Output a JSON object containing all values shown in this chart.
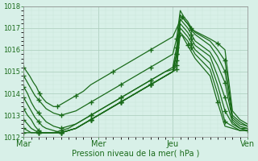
{
  "xlabel": "Pression niveau de la mer( hPa )",
  "bg_color": "#d8f0e8",
  "line_color": "#1a6b1a",
  "grid_major_color": "#aaccbb",
  "grid_minor_color": "#c8e4d8",
  "ylim": [
    1012.0,
    1018.0
  ],
  "yticks": [
    1012,
    1013,
    1014,
    1015,
    1016,
    1017,
    1018
  ],
  "xtick_labels": [
    "Mar",
    "Mer",
    "Jeu",
    "Ven"
  ],
  "xtick_positions": [
    0,
    1,
    2,
    3
  ],
  "xlim": [
    0,
    3.0
  ],
  "series": [
    {
      "x": [
        0.0,
        0.04,
        0.08,
        0.13,
        0.17,
        0.21,
        0.25,
        0.3,
        0.35,
        0.4,
        0.45,
        0.5,
        0.55,
        0.6,
        0.65,
        0.7,
        0.8,
        0.9,
        1.0,
        1.1,
        1.2,
        1.3,
        1.4,
        1.5,
        1.6,
        1.7,
        1.8,
        1.9,
        2.0,
        2.08,
        2.13,
        2.17,
        2.22,
        2.27,
        2.5,
        2.6,
        2.7,
        2.8,
        2.9,
        3.0
      ],
      "y": [
        1015.2,
        1015.0,
        1014.8,
        1014.5,
        1014.3,
        1014.0,
        1013.8,
        1013.6,
        1013.5,
        1013.4,
        1013.4,
        1013.5,
        1013.6,
        1013.7,
        1013.8,
        1013.9,
        1014.1,
        1014.4,
        1014.6,
        1014.8,
        1015.0,
        1015.2,
        1015.4,
        1015.6,
        1015.8,
        1016.0,
        1016.2,
        1016.4,
        1016.6,
        1017.2,
        1017.5,
        1017.3,
        1017.1,
        1016.9,
        1016.5,
        1016.3,
        1016.0,
        1013.2,
        1012.8,
        1012.6
      ]
    },
    {
      "x": [
        0.0,
        0.05,
        0.1,
        0.15,
        0.2,
        0.25,
        0.3,
        0.4,
        0.5,
        0.6,
        0.7,
        0.8,
        0.9,
        1.0,
        1.1,
        1.2,
        1.3,
        1.4,
        1.5,
        1.6,
        1.7,
        1.8,
        1.9,
        2.0,
        2.05,
        2.1,
        2.15,
        2.2,
        2.25,
        2.3,
        2.5,
        2.6,
        2.7,
        2.8,
        2.9,
        3.0
      ],
      "y": [
        1014.8,
        1014.5,
        1014.2,
        1013.9,
        1013.7,
        1013.5,
        1013.3,
        1013.1,
        1013.0,
        1013.1,
        1013.2,
        1013.4,
        1013.6,
        1013.8,
        1014.0,
        1014.2,
        1014.4,
        1014.6,
        1014.8,
        1015.0,
        1015.2,
        1015.4,
        1015.6,
        1015.8,
        1016.5,
        1017.8,
        1017.5,
        1017.3,
        1017.0,
        1016.8,
        1016.4,
        1016.0,
        1015.5,
        1013.0,
        1012.7,
        1012.5
      ]
    },
    {
      "x": [
        0.0,
        0.05,
        0.1,
        0.15,
        0.2,
        0.25,
        0.3,
        0.4,
        0.5,
        0.6,
        0.7,
        0.8,
        0.9,
        1.0,
        1.1,
        1.2,
        1.3,
        1.4,
        1.5,
        1.6,
        1.7,
        1.8,
        1.9,
        2.0,
        2.05,
        2.1,
        2.15,
        2.2,
        2.25,
        2.3,
        2.5,
        2.6,
        2.7,
        2.8,
        2.9,
        3.0
      ],
      "y": [
        1014.3,
        1014.0,
        1013.6,
        1013.3,
        1013.1,
        1012.9,
        1012.7,
        1012.5,
        1012.4,
        1012.5,
        1012.6,
        1012.8,
        1013.0,
        1013.2,
        1013.4,
        1013.6,
        1013.8,
        1014.0,
        1014.2,
        1014.4,
        1014.6,
        1014.8,
        1015.0,
        1015.2,
        1016.1,
        1017.6,
        1017.4,
        1017.2,
        1016.9,
        1016.7,
        1016.2,
        1015.7,
        1015.0,
        1012.9,
        1012.6,
        1012.5
      ]
    },
    {
      "x": [
        0.0,
        0.05,
        0.1,
        0.15,
        0.2,
        0.25,
        0.3,
        0.4,
        0.5,
        0.6,
        0.7,
        0.8,
        0.9,
        1.0,
        1.1,
        1.2,
        1.3,
        1.4,
        1.5,
        1.6,
        1.7,
        1.8,
        1.9,
        2.0,
        2.05,
        2.1,
        2.15,
        2.2,
        2.25,
        2.3,
        2.5,
        2.6,
        2.7,
        2.8,
        2.9,
        3.0
      ],
      "y": [
        1013.8,
        1013.5,
        1013.2,
        1012.9,
        1012.7,
        1012.5,
        1012.4,
        1012.3,
        1012.2,
        1012.3,
        1012.4,
        1012.6,
        1012.8,
        1013.0,
        1013.2,
        1013.4,
        1013.6,
        1013.8,
        1014.0,
        1014.2,
        1014.4,
        1014.6,
        1014.8,
        1015.0,
        1015.8,
        1017.4,
        1017.2,
        1017.0,
        1016.7,
        1016.4,
        1015.9,
        1015.3,
        1014.5,
        1012.8,
        1012.5,
        1012.4
      ]
    },
    {
      "x": [
        0.0,
        0.05,
        0.1,
        0.15,
        0.2,
        0.25,
        0.3,
        0.4,
        0.5,
        0.6,
        0.7,
        0.8,
        0.9,
        1.0,
        1.1,
        1.2,
        1.3,
        1.4,
        1.5,
        1.6,
        1.7,
        1.8,
        1.9,
        2.0,
        2.05,
        2.1,
        2.15,
        2.2,
        2.25,
        2.3,
        2.5,
        2.6,
        2.7,
        2.8,
        2.9,
        3.0
      ],
      "y": [
        1013.3,
        1013.0,
        1012.8,
        1012.5,
        1012.3,
        1012.2,
        1012.2,
        1012.2,
        1012.2,
        1012.3,
        1012.4,
        1012.6,
        1012.8,
        1013.0,
        1013.2,
        1013.4,
        1013.6,
        1013.8,
        1014.0,
        1014.2,
        1014.4,
        1014.6,
        1014.8,
        1015.0,
        1015.5,
        1017.2,
        1017.0,
        1016.8,
        1016.5,
        1016.2,
        1015.7,
        1014.8,
        1013.8,
        1012.7,
        1012.4,
        1012.4
      ]
    },
    {
      "x": [
        0.0,
        0.05,
        0.1,
        0.15,
        0.2,
        0.25,
        0.3,
        0.4,
        0.5,
        0.6,
        0.7,
        0.8,
        0.9,
        1.0,
        1.1,
        1.2,
        1.3,
        1.4,
        1.5,
        1.6,
        1.7,
        1.8,
        1.9,
        2.0,
        2.05,
        2.1,
        2.15,
        2.2,
        2.25,
        2.3,
        2.5,
        2.6,
        2.7,
        2.8,
        2.9,
        3.0
      ],
      "y": [
        1012.8,
        1012.6,
        1012.4,
        1012.3,
        1012.2,
        1012.2,
        1012.2,
        1012.2,
        1012.2,
        1012.3,
        1012.4,
        1012.6,
        1012.8,
        1013.0,
        1013.2,
        1013.4,
        1013.6,
        1013.8,
        1014.0,
        1014.2,
        1014.4,
        1014.6,
        1014.8,
        1015.0,
        1015.3,
        1017.0,
        1016.8,
        1016.6,
        1016.3,
        1016.0,
        1015.4,
        1014.4,
        1013.2,
        1012.6,
        1012.4,
        1012.3
      ]
    },
    {
      "x": [
        0.0,
        0.05,
        0.1,
        0.15,
        0.2,
        0.25,
        0.3,
        0.4,
        0.5,
        0.6,
        0.7,
        0.8,
        0.9,
        1.0,
        1.1,
        1.2,
        1.3,
        1.4,
        1.5,
        1.6,
        1.7,
        1.8,
        1.9,
        2.0,
        2.05,
        2.1,
        2.15,
        2.2,
        2.25,
        2.3,
        2.5,
        2.6,
        2.7,
        2.8,
        2.9,
        3.0
      ],
      "y": [
        1012.4,
        1012.3,
        1012.2,
        1012.2,
        1012.2,
        1012.2,
        1012.2,
        1012.2,
        1012.2,
        1012.3,
        1012.4,
        1012.6,
        1012.8,
        1013.0,
        1013.2,
        1013.4,
        1013.6,
        1013.8,
        1014.0,
        1014.2,
        1014.4,
        1014.6,
        1014.8,
        1015.0,
        1015.1,
        1016.8,
        1016.6,
        1016.4,
        1016.1,
        1015.8,
        1015.1,
        1014.0,
        1012.7,
        1012.5,
        1012.3,
        1012.3
      ]
    },
    {
      "x": [
        0.0,
        0.05,
        0.1,
        0.15,
        0.2,
        0.25,
        0.3,
        0.4,
        0.5,
        0.6,
        0.7,
        0.8,
        0.9,
        1.0,
        1.1,
        1.2,
        1.3,
        1.4,
        1.5,
        1.6,
        1.7,
        1.8,
        1.9,
        2.0,
        2.05,
        2.08,
        2.12,
        2.15,
        2.2,
        2.25,
        2.3,
        2.5,
        2.6,
        2.7,
        2.8,
        2.9,
        3.0
      ],
      "y": [
        1012.2,
        1012.2,
        1012.2,
        1012.2,
        1012.2,
        1012.2,
        1012.2,
        1012.2,
        1012.3,
        1012.4,
        1012.6,
        1012.8,
        1013.0,
        1013.2,
        1013.4,
        1013.6,
        1013.8,
        1014.0,
        1014.2,
        1014.4,
        1014.6,
        1014.8,
        1015.0,
        1015.1,
        1015.8,
        1016.5,
        1016.7,
        1016.5,
        1016.2,
        1015.9,
        1015.6,
        1014.8,
        1013.6,
        1012.5,
        1012.4,
        1012.3,
        1012.3
      ]
    }
  ]
}
